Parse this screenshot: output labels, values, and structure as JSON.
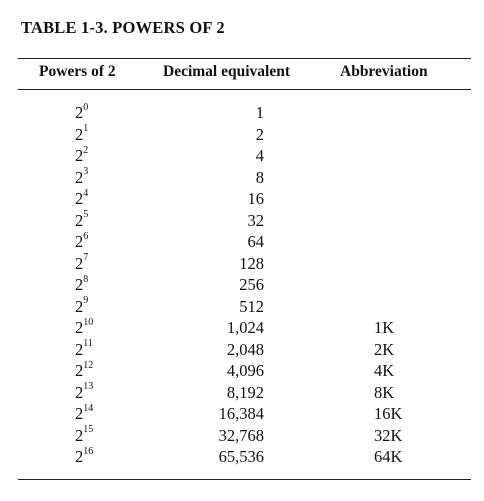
{
  "title": "TABLE 1-3. POWERS OF 2",
  "columns": [
    "Powers of 2",
    "Decimal equivalent",
    "Abbreviation"
  ],
  "rows": [
    {
      "base": "2",
      "exp": "0",
      "decimal": "1",
      "abbr": ""
    },
    {
      "base": "2",
      "exp": "1",
      "decimal": "2",
      "abbr": ""
    },
    {
      "base": "2",
      "exp": "2",
      "decimal": "4",
      "abbr": ""
    },
    {
      "base": "2",
      "exp": "3",
      "decimal": "8",
      "abbr": ""
    },
    {
      "base": "2",
      "exp": "4",
      "decimal": "16",
      "abbr": ""
    },
    {
      "base": "2",
      "exp": "5",
      "decimal": "32",
      "abbr": ""
    },
    {
      "base": "2",
      "exp": "6",
      "decimal": "64",
      "abbr": ""
    },
    {
      "base": "2",
      "exp": "7",
      "decimal": "128",
      "abbr": ""
    },
    {
      "base": "2",
      "exp": "8",
      "decimal": "256",
      "abbr": ""
    },
    {
      "base": "2",
      "exp": "9",
      "decimal": "512",
      "abbr": ""
    },
    {
      "base": "2",
      "exp": "10",
      "decimal": "1,024",
      "abbr": "1K"
    },
    {
      "base": "2",
      "exp": "11",
      "decimal": "2,048",
      "abbr": "2K"
    },
    {
      "base": "2",
      "exp": "12",
      "decimal": "4,096",
      "abbr": "4K"
    },
    {
      "base": "2",
      "exp": "13",
      "decimal": "8,192",
      "abbr": "8K"
    },
    {
      "base": "2",
      "exp": "14",
      "decimal": "16,384",
      "abbr": "16K"
    },
    {
      "base": "2",
      "exp": "15",
      "decimal": "32,768",
      "abbr": "32K"
    },
    {
      "base": "2",
      "exp": "16",
      "decimal": "65,536",
      "abbr": "64K"
    }
  ]
}
